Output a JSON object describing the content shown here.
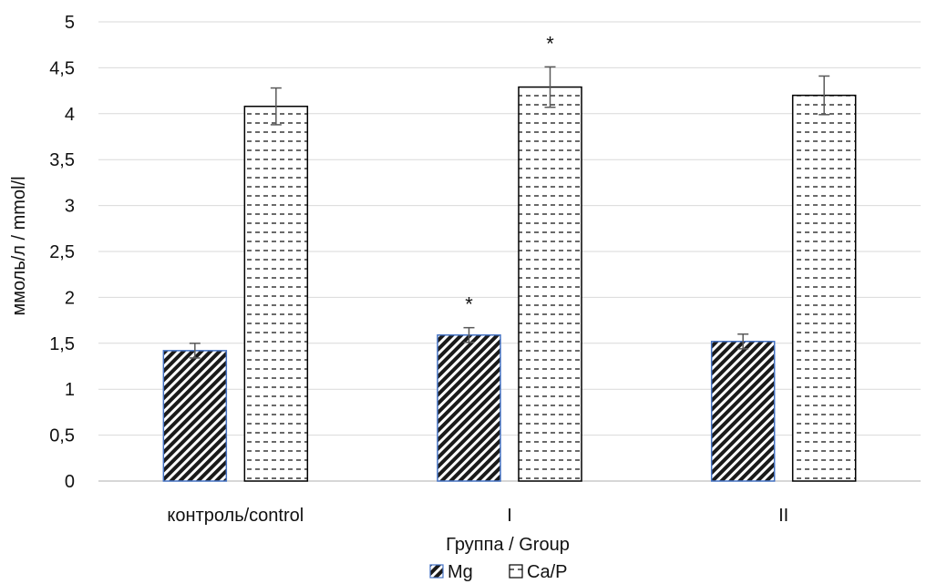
{
  "chart_data": {
    "type": "bar",
    "title": "",
    "xlabel": "Группа / Group",
    "ylabel": "ммоль/л / mmol/l",
    "ylim": [
      0,
      5
    ],
    "yticks": [
      0,
      0.5,
      1,
      1.5,
      2,
      2.5,
      3,
      3.5,
      4,
      4.5,
      5
    ],
    "ytick_labels": [
      "0",
      "0,5",
      "1",
      "1,5",
      "2",
      "2,5",
      "3",
      "3,5",
      "4",
      "4,5",
      "5"
    ],
    "categories": [
      "контроль/control",
      "I",
      "II"
    ],
    "series": [
      {
        "name": "Mg",
        "values": [
          1.42,
          1.59,
          1.52
        ],
        "errors": [
          0.08,
          0.08,
          0.08
        ],
        "annotations": [
          "",
          "*",
          ""
        ],
        "pattern": "diagonal-hatch",
        "edge_color": "#4472c4"
      },
      {
        "name": "Ca/P",
        "values": [
          4.08,
          4.29,
          4.2
        ],
        "errors": [
          0.2,
          0.22,
          0.21
        ],
        "annotations": [
          "",
          "*",
          ""
        ],
        "pattern": "dashed-horizontal",
        "edge_color": "#000000"
      }
    ],
    "grid": true,
    "grid_color": "#d9d9d9",
    "legend_position": "bottom"
  }
}
